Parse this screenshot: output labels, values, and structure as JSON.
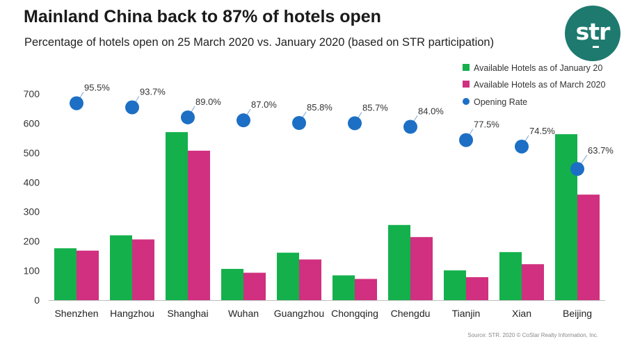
{
  "title": "Mainland China back to 87% of hotels open",
  "subtitle": "Percentage of hotels open on 25 March 2020 vs. January 2020 (based on STR participation)",
  "logo_text": "str",
  "source": "Source: STR. 2020 © CoStar Realty Information, Inc.",
  "chart_data": {
    "type": "bar",
    "categories": [
      "Shenzhen",
      "Hangzhou",
      "Shanghai",
      "Wuhan",
      "Guangzhou",
      "Chongqing",
      "Chengdu",
      "Tianjin",
      "Xian",
      "Beijing"
    ],
    "series": [
      {
        "name": "Available Hotels as of January 20",
        "type": "bar",
        "color": "#14b04c",
        "values": [
          176,
          220,
          570,
          106,
          161,
          84,
          255,
          101,
          163,
          563
        ]
      },
      {
        "name": "Available Hotels as of March 2020",
        "type": "bar",
        "color": "#d0307f",
        "values": [
          168,
          206,
          507,
          93,
          138,
          72,
          214,
          78,
          122,
          358
        ]
      },
      {
        "name": "Opening Rate",
        "type": "scatter",
        "color": "#1c6fc4",
        "values": [
          95.5,
          93.7,
          89.0,
          87.0,
          85.8,
          85.7,
          84.0,
          77.5,
          74.5,
          63.7
        ],
        "labels": [
          "95.5%",
          "93.7%",
          "89.0%",
          "87.0%",
          "85.8%",
          "85.7%",
          "84.0%",
          "77.5%",
          "74.5%",
          "63.7%"
        ],
        "plotted_at": [
          668,
          654,
          620,
          610,
          601,
          600,
          588,
          543,
          521,
          445
        ]
      }
    ],
    "yticks": [
      0,
      100,
      200,
      300,
      400,
      500,
      600,
      700
    ],
    "ylim": [
      0,
      700
    ],
    "grid": false,
    "legend_position": "top-right"
  }
}
